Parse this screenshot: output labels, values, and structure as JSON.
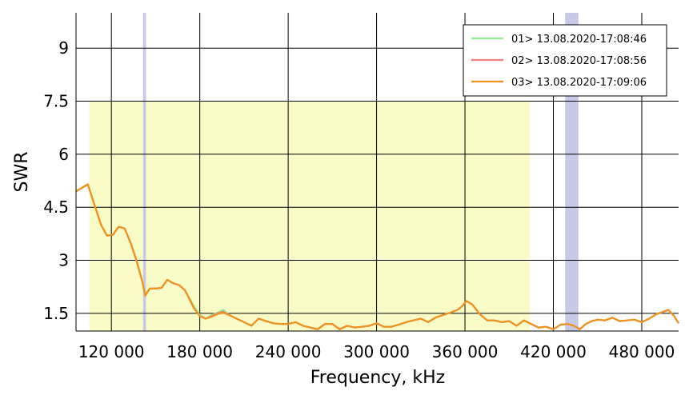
{
  "chart_data": {
    "type": "line",
    "xlabel": "Frequency, kHz",
    "ylabel": "SWR",
    "xlim": [
      96000,
      505000
    ],
    "ylim": [
      1.0,
      10.0
    ],
    "x_ticks": [
      120000,
      180000,
      240000,
      300000,
      360000,
      420000,
      480000
    ],
    "x_tick_labels": [
      "120 000",
      "180 000",
      "240 000",
      "300 000",
      "360 000",
      "420 000",
      "480 000"
    ],
    "y_ticks": [
      1.5,
      3,
      4.5,
      6,
      7.5,
      9
    ],
    "y_tick_labels": [
      "1.5",
      "3",
      "4.5",
      "6",
      "7.5",
      "9"
    ],
    "grid": true,
    "legend_position": "top-right",
    "colors": {
      "shaded_band": "#fafcc8",
      "marker_band": "#c7cae6",
      "grid": "#000000"
    },
    "shaded_band": {
      "x_start": 105000,
      "x_end": 404000,
      "y_start": 1.0,
      "y_end": 7.5
    },
    "marker_bands": [
      {
        "x_start": 141500,
        "x_end": 143500
      },
      {
        "x_start": 428000,
        "x_end": 437000
      }
    ],
    "series": [
      {
        "name": "01> 13.08.2020-17:08:46",
        "color": "#90ee90",
        "x": [
          96000,
          104000,
          113000,
          117000,
          121000,
          125000,
          129000,
          133000,
          137000,
          141000,
          143000,
          146000,
          150000,
          154000,
          158000,
          162000,
          166000,
          170000,
          176000,
          180000,
          184000,
          188000,
          192000,
          196000,
          200000,
          205000,
          210000,
          215000,
          220000,
          225000,
          230000,
          235000,
          240000,
          245000,
          250000,
          255000,
          260000,
          265000,
          270000,
          275000,
          280000,
          285000,
          290000,
          295000,
          300000,
          305000,
          310000,
          315000,
          320000,
          325000,
          330000,
          335000,
          340000,
          345000,
          350000,
          355000,
          358000,
          361000,
          365000,
          370000,
          375000,
          380000,
          385000,
          390000,
          395000,
          400000,
          405000,
          410000,
          415000,
          420000,
          425000,
          430000,
          434000,
          438000,
          442000,
          446000,
          450000,
          455000,
          460000,
          465000,
          470000,
          475000,
          480000,
          485000,
          490000,
          495000,
          498000,
          502000,
          505000
        ],
        "y": [
          4.95,
          5.15,
          4.0,
          3.7,
          3.72,
          3.95,
          3.9,
          3.5,
          3.0,
          2.4,
          2.05,
          2.2,
          2.2,
          2.22,
          2.45,
          2.35,
          2.3,
          2.15,
          1.7,
          1.45,
          1.35,
          1.45,
          1.52,
          1.6,
          1.45,
          1.35,
          1.25,
          1.15,
          1.35,
          1.28,
          1.22,
          1.2,
          1.2,
          1.25,
          1.15,
          1.1,
          1.05,
          1.2,
          1.2,
          1.05,
          1.15,
          1.1,
          1.12,
          1.15,
          1.22,
          1.12,
          1.12,
          1.18,
          1.25,
          1.3,
          1.35,
          1.25,
          1.38,
          1.45,
          1.52,
          1.6,
          1.7,
          1.85,
          1.75,
          1.48,
          1.3,
          1.3,
          1.25,
          1.28,
          1.15,
          1.3,
          1.2,
          1.1,
          1.12,
          1.05,
          1.18,
          1.2,
          1.15,
          1.05,
          1.2,
          1.28,
          1.32,
          1.3,
          1.38,
          1.28,
          1.3,
          1.32,
          1.25,
          1.35,
          1.48,
          1.55,
          1.6,
          1.42,
          1.22
        ]
      },
      {
        "name": "02> 13.08.2020-17:08:56",
        "color": "#f08080",
        "x": [
          96000,
          104000,
          113000,
          117000,
          121000,
          125000,
          129000,
          133000,
          137000,
          141000,
          143000,
          146000,
          150000,
          154000,
          158000,
          162000,
          166000,
          170000,
          176000,
          180000,
          184000,
          188000,
          192000,
          196000,
          200000,
          205000,
          210000,
          215000,
          220000,
          225000,
          230000,
          235000,
          240000,
          245000,
          250000,
          255000,
          260000,
          265000,
          270000,
          275000,
          280000,
          285000,
          290000,
          295000,
          300000,
          305000,
          310000,
          315000,
          320000,
          325000,
          330000,
          335000,
          340000,
          345000,
          350000,
          355000,
          358000,
          361000,
          365000,
          370000,
          375000,
          380000,
          385000,
          390000,
          395000,
          400000,
          405000,
          410000,
          415000,
          420000,
          425000,
          430000,
          434000,
          438000,
          442000,
          446000,
          450000,
          455000,
          460000,
          465000,
          470000,
          475000,
          480000,
          485000,
          490000,
          495000,
          498000,
          502000,
          505000
        ],
        "y": [
          4.95,
          5.15,
          4.0,
          3.7,
          3.72,
          3.95,
          3.9,
          3.5,
          3.0,
          2.4,
          2.0,
          2.2,
          2.2,
          2.22,
          2.45,
          2.35,
          2.3,
          2.15,
          1.65,
          1.42,
          1.35,
          1.42,
          1.5,
          1.55,
          1.45,
          1.35,
          1.25,
          1.15,
          1.35,
          1.28,
          1.22,
          1.2,
          1.2,
          1.25,
          1.15,
          1.1,
          1.05,
          1.2,
          1.2,
          1.05,
          1.15,
          1.1,
          1.12,
          1.15,
          1.22,
          1.12,
          1.12,
          1.18,
          1.25,
          1.3,
          1.35,
          1.25,
          1.38,
          1.45,
          1.52,
          1.6,
          1.7,
          1.85,
          1.75,
          1.48,
          1.3,
          1.3,
          1.25,
          1.28,
          1.15,
          1.3,
          1.2,
          1.1,
          1.12,
          1.05,
          1.18,
          1.2,
          1.15,
          1.05,
          1.2,
          1.28,
          1.32,
          1.3,
          1.38,
          1.28,
          1.3,
          1.32,
          1.25,
          1.35,
          1.48,
          1.55,
          1.6,
          1.42,
          1.22
        ]
      },
      {
        "name": "03> 13.08.2020-17:09:06",
        "color": "#f0921c",
        "x": [
          96000,
          104000,
          113000,
          117000,
          121000,
          125000,
          129000,
          133000,
          137000,
          141000,
          143000,
          146000,
          150000,
          154000,
          158000,
          162000,
          166000,
          170000,
          176000,
          180000,
          184000,
          188000,
          192000,
          196000,
          200000,
          205000,
          210000,
          215000,
          220000,
          225000,
          230000,
          235000,
          240000,
          245000,
          250000,
          255000,
          260000,
          265000,
          270000,
          275000,
          280000,
          285000,
          290000,
          295000,
          300000,
          305000,
          310000,
          315000,
          320000,
          325000,
          330000,
          335000,
          340000,
          345000,
          350000,
          355000,
          358000,
          361000,
          365000,
          370000,
          375000,
          380000,
          385000,
          390000,
          395000,
          400000,
          405000,
          410000,
          415000,
          420000,
          425000,
          430000,
          434000,
          438000,
          442000,
          446000,
          450000,
          455000,
          460000,
          465000,
          470000,
          475000,
          480000,
          485000,
          490000,
          495000,
          498000,
          502000,
          505000
        ],
        "y": [
          4.95,
          5.15,
          4.0,
          3.7,
          3.72,
          3.95,
          3.9,
          3.5,
          3.0,
          2.4,
          2.0,
          2.2,
          2.2,
          2.22,
          2.45,
          2.35,
          2.3,
          2.15,
          1.65,
          1.42,
          1.35,
          1.4,
          1.48,
          1.52,
          1.45,
          1.35,
          1.25,
          1.15,
          1.35,
          1.28,
          1.22,
          1.2,
          1.2,
          1.25,
          1.15,
          1.1,
          1.05,
          1.2,
          1.2,
          1.05,
          1.15,
          1.1,
          1.12,
          1.15,
          1.22,
          1.12,
          1.12,
          1.18,
          1.25,
          1.3,
          1.35,
          1.25,
          1.38,
          1.45,
          1.52,
          1.6,
          1.7,
          1.85,
          1.75,
          1.48,
          1.3,
          1.3,
          1.25,
          1.28,
          1.15,
          1.3,
          1.2,
          1.1,
          1.12,
          1.05,
          1.18,
          1.2,
          1.15,
          1.05,
          1.2,
          1.28,
          1.32,
          1.3,
          1.38,
          1.28,
          1.3,
          1.32,
          1.25,
          1.35,
          1.48,
          1.55,
          1.6,
          1.42,
          1.22
        ]
      }
    ]
  }
}
